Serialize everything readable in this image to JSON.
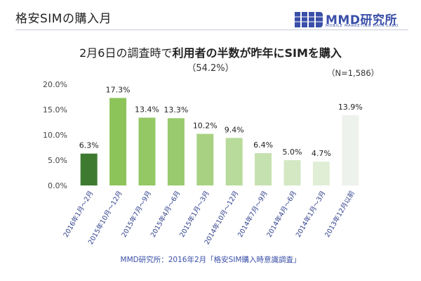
{
  "page": {
    "title": "格安SIMの購入月",
    "logo_text": "MMD研究所",
    "logo_subtext": "MOBILE MARKETING DATA LABO",
    "headline_prefix": "2月6日の調査時で",
    "headline_bold": "利用者の半数が昨年にSIMを購入",
    "headline_pct": "（54.2%）",
    "sample_size": "（N=1,586）",
    "source": "MMD研究所：2016年2月「格安SIM購入時意識調査」"
  },
  "colors": {
    "accent": "#3a4fa8",
    "rule": "#c8ccd6"
  },
  "chart_data": {
    "type": "bar",
    "categories": [
      "2016年1月～2月",
      "2015年10月～12月",
      "2015年7月～9月",
      "2015年4月～6月",
      "2015年1月～3月",
      "2014年10月～12月",
      "2014年7月～9月",
      "2014年4月～6月",
      "2014年1月～3月",
      "2013年12月以前"
    ],
    "values": [
      6.3,
      17.3,
      13.4,
      13.3,
      10.2,
      9.4,
      6.4,
      5.0,
      4.7,
      13.9
    ],
    "data_labels": [
      "6.3%",
      "17.3%",
      "13.4%",
      "13.3%",
      "10.2%",
      "9.4%",
      "6.4%",
      "5.0%",
      "4.7%",
      "13.9%"
    ],
    "bar_colors": [
      "#3e7a30",
      "#8cc45a",
      "#93c865",
      "#99cb6e",
      "#a8d282",
      "#b8da9b",
      "#c6e1b0",
      "#d3e8c3",
      "#e0eed5",
      "#eef2ec"
    ],
    "yticks": [
      "0.0%",
      "5.0%",
      "10.0%",
      "15.0%",
      "20.0%"
    ],
    "ytick_values": [
      0,
      5,
      10,
      15,
      20
    ],
    "ylim": [
      0,
      20
    ],
    "grid": false
  }
}
